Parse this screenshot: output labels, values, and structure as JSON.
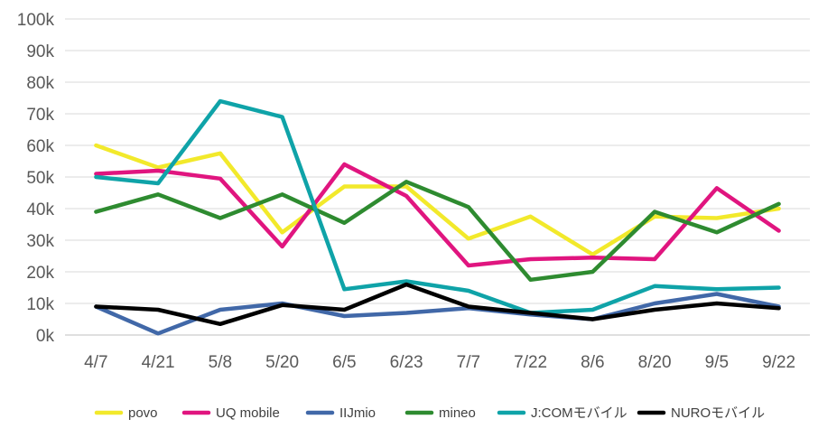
{
  "chart_data": {
    "type": "line",
    "categories": [
      "4/7",
      "4/21",
      "5/8",
      "5/20",
      "6/5",
      "6/23",
      "7/7",
      "7/22",
      "8/6",
      "8/20",
      "9/5",
      "9/22"
    ],
    "y_ticks": [
      "0k",
      "10k",
      "20k",
      "30k",
      "40k",
      "50k",
      "60k",
      "70k",
      "80k",
      "90k",
      "100k"
    ],
    "ylim": [
      0,
      100000
    ],
    "grid": true,
    "legend_position": "bottom",
    "series": [
      {
        "name": "povo",
        "color": "#F2E92B",
        "values": [
          60000,
          53000,
          57500,
          32500,
          47000,
          47000,
          30500,
          37500,
          25500,
          37500,
          37000,
          40000
        ]
      },
      {
        "name": "UQ mobile",
        "color": "#E0157F",
        "values": [
          51000,
          52000,
          49500,
          28000,
          54000,
          44000,
          22000,
          24000,
          24500,
          24000,
          46500,
          33000
        ]
      },
      {
        "name": "IIJmio",
        "color": "#4168A8",
        "values": [
          9000,
          500,
          8000,
          10000,
          6000,
          7000,
          8500,
          6500,
          5000,
          10000,
          13000,
          9000
        ]
      },
      {
        "name": "mineo",
        "color": "#2E8B30",
        "values": [
          39000,
          44500,
          37000,
          44500,
          35500,
          48500,
          40500,
          17500,
          20000,
          39000,
          32500,
          41500
        ]
      },
      {
        "name": "J:COMモバイル",
        "color": "#0FA3A8",
        "values": [
          50000,
          48000,
          74000,
          69000,
          14500,
          17000,
          14000,
          7000,
          8000,
          15500,
          14500,
          15000
        ]
      },
      {
        "name": "NUROモバイル",
        "color": "#000000",
        "values": [
          9000,
          8000,
          3500,
          9500,
          8000,
          16000,
          9000,
          7000,
          5000,
          8000,
          10000,
          8500
        ]
      }
    ]
  }
}
